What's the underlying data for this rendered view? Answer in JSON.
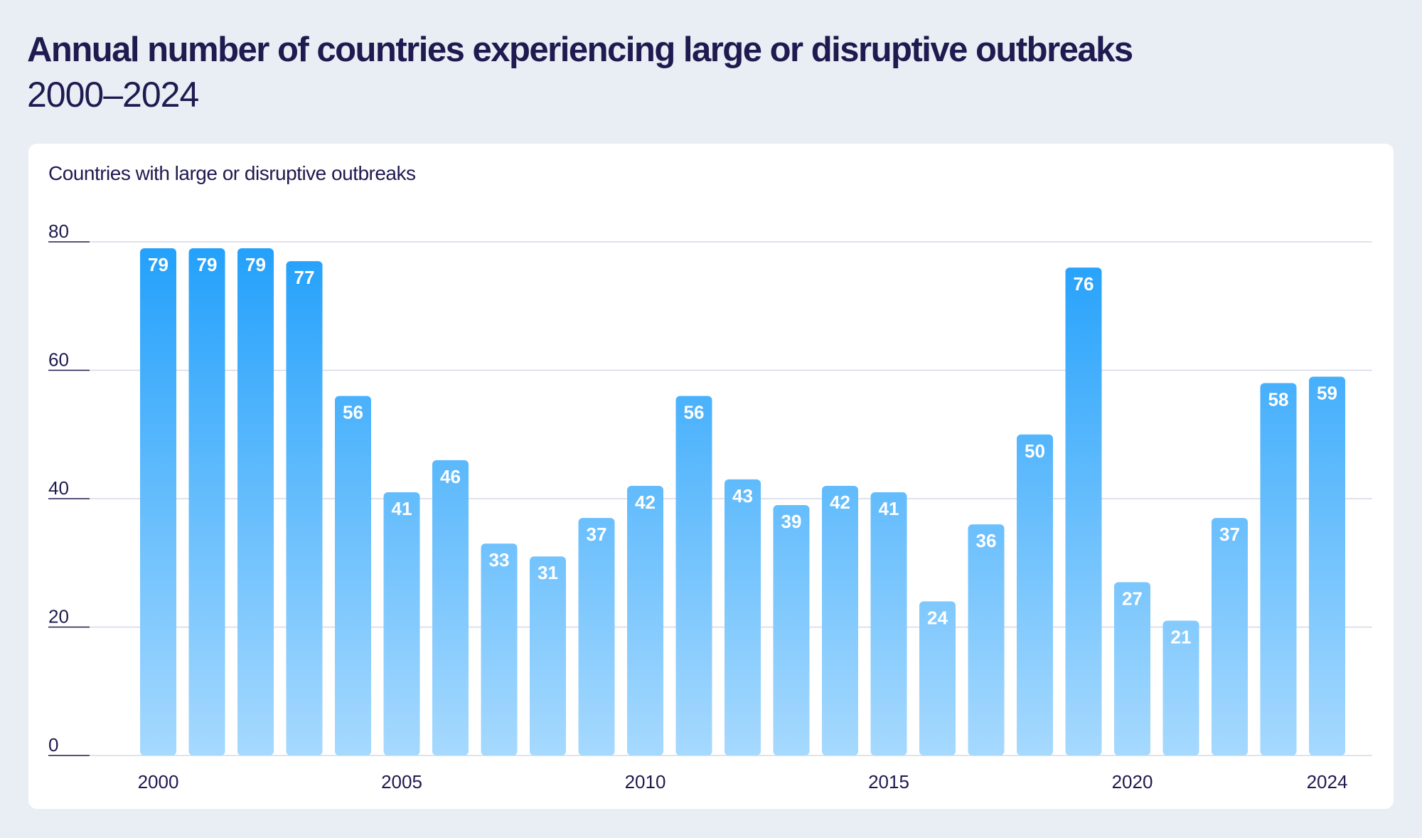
{
  "chart_data": {
    "type": "bar",
    "title": "Annual number of countries experiencing large or disruptive outbreaks",
    "subtitle": "2000–2024",
    "ylabel": "Countries with large or disruptive outbreaks",
    "xlabel": "",
    "categories": [
      "2000",
      "2001",
      "2002",
      "2003",
      "2004",
      "2005",
      "2006",
      "2007",
      "2008",
      "2009",
      "2010",
      "2011",
      "2012",
      "2013",
      "2014",
      "2015",
      "2016",
      "2017",
      "2018",
      "2019",
      "2020",
      "2021",
      "2022",
      "2023",
      "2024"
    ],
    "values": [
      79,
      79,
      79,
      77,
      56,
      41,
      46,
      33,
      31,
      37,
      42,
      56,
      43,
      39,
      42,
      41,
      24,
      36,
      50,
      76,
      27,
      21,
      37,
      58,
      59
    ],
    "x_tick_labels": [
      "2000",
      "2005",
      "2010",
      "2015",
      "2020",
      "2024"
    ],
    "y_ticks": [
      0,
      20,
      40,
      60,
      80
    ],
    "ylim": [
      0,
      80
    ],
    "grid": true,
    "data_labels": true,
    "colors": {
      "bar_top": "#22a0fb",
      "bar_bottom": "#a6d9fe",
      "text": "#1f1a4f",
      "background": "#e9eef5"
    }
  }
}
